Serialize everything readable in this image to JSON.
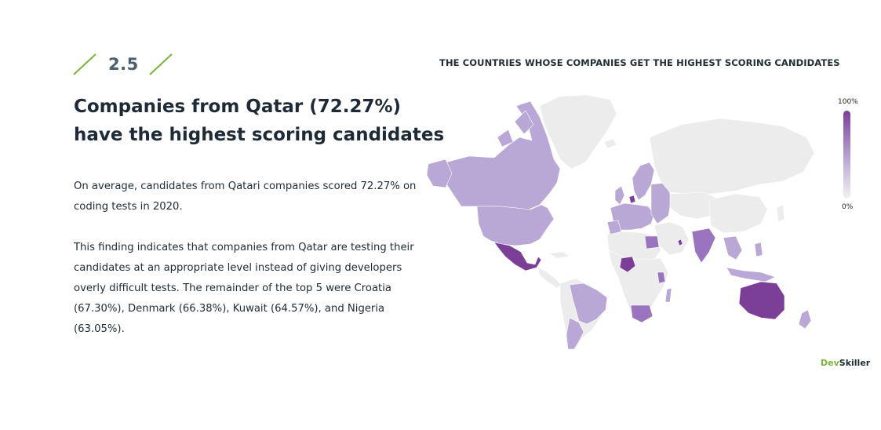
{
  "section": {
    "number": "2.5"
  },
  "headline": {
    "line1": "Companies from Qatar (72.27%)",
    "line2": "have the highest scoring candidates"
  },
  "paragraphs": {
    "p1": "On average, candidates from Qatari companies scored 72.27% on coding tests in 2020.",
    "p2": "This finding indicates that companies from Qatar are testing their candidates at an appropriate level instead of giving developers overly difficult tests. The remainder of the top 5 were Croatia (67.30%), Denmark (66.38%), Kuwait (64.57%), and Nigeria (63.05%)."
  },
  "map": {
    "title": "THE COUNTRIES WHOSE COMPANIES GET THE HIGHEST SCORING CANDIDATES",
    "legend": {
      "max_label": "100%",
      "min_label": "0%"
    },
    "colors": {
      "no_data": "#ececec",
      "low": "#b9a7d6",
      "mid": "#9a74bf",
      "high": "#7b3f98",
      "accent_green": "#7bb33a"
    }
  },
  "brand": {
    "part1": "Dev",
    "part2": "Skiller"
  }
}
